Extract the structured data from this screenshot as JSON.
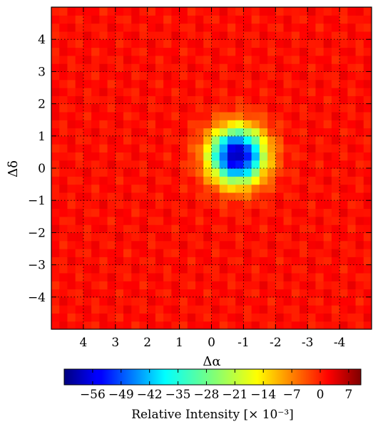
{
  "chart_data": {
    "type": "heatmap",
    "xlabel": "Δα",
    "ylabel": "Δδ",
    "xlim": [
      5,
      -5
    ],
    "ylim": [
      -5,
      5
    ],
    "x_ticks": [
      4,
      3,
      2,
      1,
      0,
      -1,
      -2,
      -3,
      -4
    ],
    "x_tick_labels": [
      "4",
      "3",
      "2",
      "1",
      "0",
      "-1",
      "-2",
      "-3",
      "-4"
    ],
    "y_ticks": [
      4,
      3,
      2,
      1,
      0,
      -1,
      -2,
      -3,
      -4
    ],
    "y_tick_labels": [
      "4",
      "3",
      "2",
      "1",
      "0",
      "−1",
      "−2",
      "−3",
      "−4"
    ],
    "grid": true,
    "colormap": "jet",
    "background_value": 0,
    "features": [
      {
        "kind": "dip",
        "center_x": -0.8,
        "center_y": 0.4,
        "min_value": -60,
        "sigma": 0.6
      }
    ],
    "colorbar": {
      "orientation": "horizontal",
      "range": [
        -63,
        10
      ],
      "ticks": [
        -56,
        -49,
        -42,
        -35,
        -28,
        -21,
        -14,
        -7,
        0,
        7
      ],
      "tick_labels": [
        "−56",
        "−49",
        "−42",
        "−35",
        "−28",
        "−21",
        "−14",
        "−7",
        "0",
        "7"
      ],
      "label": "Relative Intensity [× 10⁻³]"
    }
  }
}
